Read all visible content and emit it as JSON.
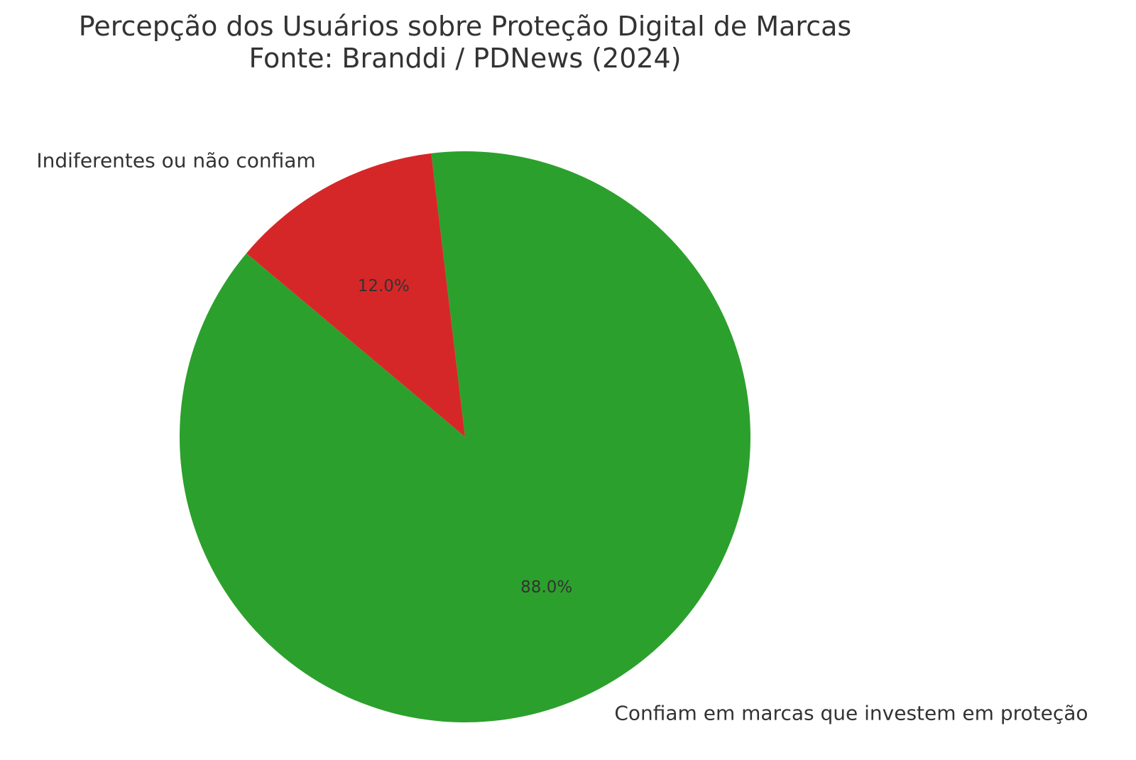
{
  "chart_data": {
    "type": "pie",
    "title": "Percepção dos Usuários sobre Proteção Digital de Marcas",
    "subtitle": "Fonte: Branddi / PDNews (2024)",
    "slices": [
      {
        "label": "Confiam em marcas que investem em proteção",
        "value": 88.0,
        "percent_label": "88.0%",
        "color": "#2ca02c"
      },
      {
        "label": "Indiferentes ou não confiam",
        "value": 12.0,
        "percent_label": "12.0%",
        "color": "#d62728"
      }
    ],
    "start_angle_deg": 140,
    "legend": "none"
  }
}
